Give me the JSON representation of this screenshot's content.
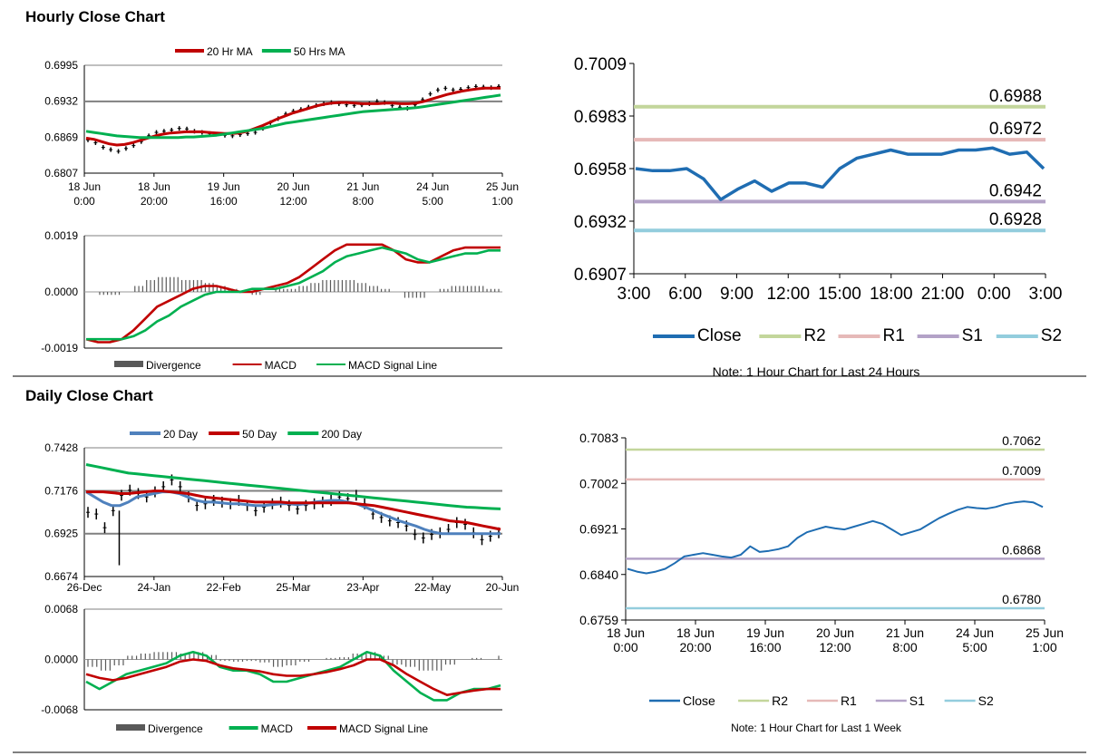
{
  "sections": {
    "hourly_title": "Hourly Close Chart",
    "daily_title": "Daily Close Chart"
  },
  "colors": {
    "ma20": "#c00000",
    "ma50": "#00b050",
    "ma20day": "#4f81bd",
    "r2": "#c3d69b",
    "r1": "#e6b9b8",
    "s1": "#b3a2c7",
    "s2": "#93cddd",
    "close": "#1f6db2",
    "grid": "#808080",
    "divergence": "#595959",
    "price": "#000000"
  },
  "chart_data": [
    {
      "id": "hourly_price",
      "type": "line",
      "legend": [
        "20 Hr MA",
        "50 Hrs MA"
      ],
      "ylim": [
        0.6807,
        0.6995
      ],
      "yticks": [
        "0.6995",
        "0.6932",
        "0.6869",
        "0.6807"
      ],
      "xticks": [
        [
          "18 Jun",
          "0:00"
        ],
        [
          "18 Jun",
          "20:00"
        ],
        [
          "19 Jun",
          "16:00"
        ],
        [
          "20 Jun",
          "12:00"
        ],
        [
          "21 Jun",
          "8:00"
        ],
        [
          "24 Jun",
          "5:00"
        ],
        [
          "25 Jun",
          "1:00"
        ]
      ],
      "gridlines": [
        0.6932
      ],
      "series": [
        {
          "name": "Price",
          "key": "price",
          "values": [
            0.6865,
            0.686,
            0.6852,
            0.6848,
            0.6845,
            0.685,
            0.6855,
            0.6862,
            0.6872,
            0.6878,
            0.688,
            0.6882,
            0.6885,
            0.6884,
            0.688,
            0.6878,
            0.6876,
            0.6875,
            0.6873,
            0.6872,
            0.6874,
            0.6876,
            0.6878,
            0.6885,
            0.6895,
            0.6902,
            0.691,
            0.6915,
            0.6918,
            0.6922,
            0.6925,
            0.6928,
            0.693,
            0.6928,
            0.6926,
            0.6925,
            0.6926,
            0.6928,
            0.6932,
            0.693,
            0.6925,
            0.6922,
            0.692,
            0.6926,
            0.6935,
            0.6945,
            0.6952,
            0.6955,
            0.6952,
            0.6953,
            0.6956,
            0.6958,
            0.6957,
            0.6956,
            0.6958
          ]
        },
        {
          "name": "20 Hr MA",
          "key": "ma20",
          "values": [
            0.6868,
            0.6866,
            0.6862,
            0.6858,
            0.6856,
            0.6857,
            0.686,
            0.6864,
            0.6868,
            0.6872,
            0.6875,
            0.6877,
            0.6878,
            0.6879,
            0.6879,
            0.6879,
            0.6878,
            0.6877,
            0.6876,
            0.6876,
            0.6877,
            0.688,
            0.6885,
            0.689,
            0.6896,
            0.6902,
            0.6907,
            0.6912,
            0.6916,
            0.692,
            0.6924,
            0.6927,
            0.6929,
            0.693,
            0.693,
            0.6929,
            0.6928,
            0.6928,
            0.6928,
            0.6929,
            0.6929,
            0.6928,
            0.6928,
            0.6929,
            0.6932,
            0.6936,
            0.694,
            0.6944,
            0.6947,
            0.695,
            0.6952,
            0.6954,
            0.6955,
            0.6955,
            0.6955
          ]
        },
        {
          "name": "50 Hrs MA",
          "key": "ma50",
          "values": [
            0.688,
            0.6878,
            0.6876,
            0.6874,
            0.6872,
            0.6871,
            0.687,
            0.6869,
            0.6869,
            0.6869,
            0.6869,
            0.6869,
            0.6869,
            0.687,
            0.687,
            0.6871,
            0.6872,
            0.6873,
            0.6875,
            0.6877,
            0.6879,
            0.6881,
            0.6883,
            0.6885,
            0.6888,
            0.6891,
            0.6894,
            0.6896,
            0.6898,
            0.69,
            0.6902,
            0.6904,
            0.6906,
            0.6908,
            0.691,
            0.6912,
            0.6914,
            0.6915,
            0.6916,
            0.6917,
            0.6918,
            0.6919,
            0.692,
            0.6921,
            0.6923,
            0.6925,
            0.6927,
            0.6929,
            0.6931,
            0.6933,
            0.6935,
            0.6937,
            0.6939,
            0.6941,
            0.6943
          ]
        }
      ]
    },
    {
      "id": "hourly_macd",
      "type": "line",
      "legend": [
        "Divergence",
        "MACD",
        "MACD Signal Line"
      ],
      "ylim": [
        -0.0019,
        0.0019
      ],
      "yticks": [
        "0.0019",
        "0.0000",
        "-0.0019"
      ],
      "series": [
        {
          "name": "MACD",
          "key": "ma20",
          "values": [
            -0.0016,
            -0.0017,
            -0.0017,
            -0.0016,
            -0.0013,
            -0.0009,
            -0.0005,
            -0.0003,
            -0.0001,
            0.0001,
            0.0002,
            0.0002,
            0.0001,
            0.0,
            0.0,
            0.0001,
            0.0002,
            0.0003,
            0.0005,
            0.0008,
            0.0011,
            0.0014,
            0.0016,
            0.0016,
            0.0016,
            0.0016,
            0.0014,
            0.0011,
            0.001,
            0.001,
            0.0012,
            0.0014,
            0.0015,
            0.0015,
            0.0015,
            0.0015
          ]
        },
        {
          "name": "MACD Signal Line",
          "key": "ma50",
          "values": [
            -0.0016,
            -0.0016,
            -0.0016,
            -0.0016,
            -0.0015,
            -0.0013,
            -0.001,
            -0.0008,
            -0.0005,
            -0.0003,
            -0.0001,
            0.0,
            0.0,
            0.0,
            0.0001,
            0.0001,
            0.0001,
            0.0002,
            0.0003,
            0.0005,
            0.0007,
            0.001,
            0.0012,
            0.0013,
            0.0014,
            0.0015,
            0.0014,
            0.0013,
            0.0011,
            0.001,
            0.0011,
            0.0012,
            0.0013,
            0.0013,
            0.0014,
            0.0014
          ]
        },
        {
          "name": "Divergence",
          "key": "divergence",
          "values": [
            0,
            -0.0001,
            -0.0001,
            0,
            0.0002,
            0.0004,
            0.0005,
            0.0005,
            0.0004,
            0.0004,
            0.0003,
            0.0002,
            0.0001,
            0,
            -0.0001,
            0,
            0.0001,
            0.0001,
            0.0002,
            0.0003,
            0.0004,
            0.0004,
            0.0004,
            0.0003,
            0.0002,
            0.0001,
            0,
            -0.0002,
            -0.0002,
            0,
            0.0001,
            0.0002,
            0.0002,
            0.0002,
            0.0001,
            0.0001
          ]
        }
      ]
    },
    {
      "id": "hourly_24h",
      "type": "line",
      "ylim": [
        0.6907,
        0.7009
      ],
      "yticks": [
        "0.7009",
        "0.6983",
        "0.6958",
        "0.6932",
        "0.6907"
      ],
      "xticks": [
        "3:00",
        "6:00",
        "9:00",
        "12:00",
        "15:00",
        "18:00",
        "21:00",
        "0:00",
        "3:00"
      ],
      "levels": [
        {
          "name": "R2",
          "key": "r2",
          "value": 0.6988,
          "label": "0.6988"
        },
        {
          "name": "R1",
          "key": "r1",
          "value": 0.6972,
          "label": "0.6972"
        },
        {
          "name": "S1",
          "key": "s1",
          "value": 0.6942,
          "label": "0.6942"
        },
        {
          "name": "S2",
          "key": "s2",
          "value": 0.6928,
          "label": "0.6928"
        }
      ],
      "series": [
        {
          "name": "Close",
          "key": "close",
          "values": [
            0.6958,
            0.6957,
            0.6957,
            0.6958,
            0.6953,
            0.6943,
            0.6948,
            0.6952,
            0.6947,
            0.6951,
            0.6951,
            0.6949,
            0.6958,
            0.6963,
            0.6965,
            0.6967,
            0.6965,
            0.6965,
            0.6965,
            0.6967,
            0.6967,
            0.6968,
            0.6965,
            0.6966,
            0.6958
          ]
        }
      ],
      "legend": [
        "Close",
        "R2",
        "R1",
        "S1",
        "S2"
      ],
      "note": "Note: 1 Hour Chart for Last 24 Hours"
    },
    {
      "id": "daily_price",
      "type": "line",
      "legend": [
        "20 Day",
        "50 Day",
        "200 Day"
      ],
      "ylim": [
        0.6674,
        0.7428
      ],
      "yticks": [
        "0.7428",
        "0.7176",
        "0.6925",
        "0.6674"
      ],
      "xticks": [
        "26-Dec",
        "24-Jan",
        "22-Feb",
        "25-Mar",
        "23-Apr",
        "22-May",
        "20-Jun"
      ],
      "gridlines": [
        0.7176,
        0.6925
      ],
      "series": [
        {
          "name": "Price",
          "key": "price",
          "values": [
            0.705,
            0.704,
            0.696,
            0.706,
            0.715,
            0.718,
            0.716,
            0.714,
            0.717,
            0.72,
            0.724,
            0.72,
            0.714,
            0.709,
            0.71,
            0.712,
            0.711,
            0.71,
            0.712,
            0.709,
            0.706,
            0.708,
            0.71,
            0.711,
            0.709,
            0.707,
            0.709,
            0.71,
            0.711,
            0.712,
            0.714,
            0.713,
            0.715,
            0.71,
            0.704,
            0.702,
            0.7,
            0.699,
            0.697,
            0.692,
            0.69,
            0.692,
            0.693,
            0.695,
            0.699,
            0.698,
            0.693,
            0.689,
            0.691,
            0.693
          ]
        },
        {
          "name": "20 Day",
          "key": "ma20day",
          "values": [
            0.717,
            0.714,
            0.711,
            0.709,
            0.709,
            0.711,
            0.714,
            0.715,
            0.716,
            0.717,
            0.717,
            0.716,
            0.714,
            0.712,
            0.711,
            0.711,
            0.7105,
            0.71,
            0.71,
            0.7095,
            0.709,
            0.709,
            0.7095,
            0.71,
            0.71,
            0.7095,
            0.71,
            0.711,
            0.7115,
            0.712,
            0.712,
            0.711,
            0.71,
            0.708,
            0.706,
            0.704,
            0.702,
            0.7,
            0.6985,
            0.697,
            0.695,
            0.6935,
            0.6925,
            0.6925,
            0.6925,
            0.6925,
            0.6925,
            0.6925,
            0.6925,
            0.6925
          ]
        },
        {
          "name": "50 Day",
          "key": "ma20",
          "values": [
            0.717,
            0.717,
            0.717,
            0.7165,
            0.716,
            0.716,
            0.7165,
            0.717,
            0.7175,
            0.7175,
            0.717,
            0.7165,
            0.716,
            0.715,
            0.714,
            0.7135,
            0.713,
            0.7125,
            0.712,
            0.7115,
            0.711,
            0.711,
            0.711,
            0.711,
            0.7105,
            0.7105,
            0.7105,
            0.7105,
            0.7105,
            0.7105,
            0.7105,
            0.7105,
            0.71,
            0.7095,
            0.709,
            0.708,
            0.707,
            0.706,
            0.705,
            0.704,
            0.703,
            0.702,
            0.701,
            0.7,
            0.6995,
            0.699,
            0.698,
            0.697,
            0.696,
            0.695
          ]
        },
        {
          "name": "200 Day",
          "key": "ma50",
          "values": [
            0.733,
            0.732,
            0.731,
            0.73,
            0.729,
            0.728,
            0.7275,
            0.727,
            0.7265,
            0.726,
            0.7255,
            0.725,
            0.7245,
            0.724,
            0.7235,
            0.723,
            0.7225,
            0.722,
            0.7215,
            0.721,
            0.7205,
            0.72,
            0.7195,
            0.719,
            0.7185,
            0.718,
            0.7175,
            0.717,
            0.7165,
            0.716,
            0.7155,
            0.715,
            0.7145,
            0.714,
            0.7135,
            0.713,
            0.7125,
            0.712,
            0.7115,
            0.711,
            0.7105,
            0.71,
            0.7095,
            0.709,
            0.7085,
            0.708,
            0.7078,
            0.7075,
            0.7072,
            0.707
          ]
        }
      ]
    },
    {
      "id": "daily_macd",
      "type": "line",
      "legend": [
        "Divergence",
        "MACD",
        "MACD Signal Line"
      ],
      "ylim": [
        -0.0068,
        0.0068
      ],
      "yticks": [
        "0.0068",
        "0.0000",
        "-0.0068"
      ],
      "series": [
        {
          "name": "MACD",
          "key": "ma50",
          "values": [
            -0.003,
            -0.004,
            -0.003,
            -0.002,
            -0.0015,
            -0.001,
            -0.0005,
            0.0005,
            0.001,
            0.0005,
            -0.001,
            -0.0015,
            -0.0015,
            -0.002,
            -0.003,
            -0.003,
            -0.0025,
            -0.002,
            -0.0015,
            -0.001,
            0.0,
            0.001,
            0.0005,
            -0.0015,
            -0.003,
            -0.0045,
            -0.0055,
            -0.0055,
            -0.0045,
            -0.004,
            -0.004,
            -0.0035
          ]
        },
        {
          "name": "MACD Signal Line",
          "key": "ma20",
          "values": [
            -0.002,
            -0.0025,
            -0.0028,
            -0.0025,
            -0.002,
            -0.0015,
            -0.001,
            -0.0003,
            0.0,
            -0.0002,
            -0.0008,
            -0.0012,
            -0.0014,
            -0.0016,
            -0.002,
            -0.0022,
            -0.0022,
            -0.002,
            -0.0017,
            -0.0013,
            -0.0008,
            0.0,
            0.0,
            -0.0008,
            -0.002,
            -0.003,
            -0.004,
            -0.0048,
            -0.0045,
            -0.0042,
            -0.004,
            -0.004
          ]
        },
        {
          "name": "Divergence",
          "key": "divergence",
          "values": [
            -0.001,
            -0.0015,
            -0.0008,
            0.0005,
            0.0008,
            0.001,
            0.001,
            0.0008,
            0.001,
            0.0006,
            -0.0002,
            -0.0003,
            -0.0002,
            -0.0004,
            -0.001,
            -0.0008,
            -0.0003,
            0.0,
            0.0002,
            0.0003,
            0.0008,
            0.001,
            0.0005,
            -0.0007,
            -0.001,
            -0.0015,
            -0.0015,
            -0.0007,
            0.0,
            0.0002,
            0.0,
            0.0005
          ]
        }
      ]
    },
    {
      "id": "daily_week",
      "type": "line",
      "ylim": [
        0.6759,
        0.7083
      ],
      "yticks": [
        "0.7083",
        "0.7002",
        "0.6921",
        "0.6840",
        "0.6759"
      ],
      "xticks": [
        [
          "18 Jun",
          "0:00"
        ],
        [
          "18 Jun",
          "20:00"
        ],
        [
          "19 Jun",
          "16:00"
        ],
        [
          "20 Jun",
          "12:00"
        ],
        [
          "21 Jun",
          "8:00"
        ],
        [
          "24 Jun",
          "5:00"
        ],
        [
          "25 Jun",
          "1:00"
        ]
      ],
      "levels": [
        {
          "name": "R2",
          "key": "r2",
          "value": 0.7062,
          "label": "0.7062"
        },
        {
          "name": "R1",
          "key": "r1",
          "value": 0.7009,
          "label": "0.7009"
        },
        {
          "name": "S1",
          "key": "s1",
          "value": 0.6868,
          "label": "0.6868"
        },
        {
          "name": "S2",
          "key": "s2",
          "value": 0.678,
          "label": "0.6780"
        }
      ],
      "series": [
        {
          "name": "Close",
          "key": "close",
          "values": [
            0.685,
            0.6845,
            0.6842,
            0.6845,
            0.685,
            0.686,
            0.6872,
            0.6875,
            0.6878,
            0.6875,
            0.6872,
            0.687,
            0.6875,
            0.689,
            0.688,
            0.6882,
            0.6885,
            0.689,
            0.6905,
            0.6915,
            0.692,
            0.6925,
            0.6922,
            0.692,
            0.6925,
            0.693,
            0.6935,
            0.693,
            0.692,
            0.691,
            0.6915,
            0.692,
            0.693,
            0.694,
            0.6948,
            0.6955,
            0.696,
            0.6958,
            0.6957,
            0.696,
            0.6965,
            0.6968,
            0.697,
            0.6968,
            0.696
          ]
        }
      ],
      "legend": [
        "Close",
        "R2",
        "R1",
        "S1",
        "S2"
      ],
      "note": "Note: 1 Hour Chart for Last 1 Week"
    }
  ]
}
